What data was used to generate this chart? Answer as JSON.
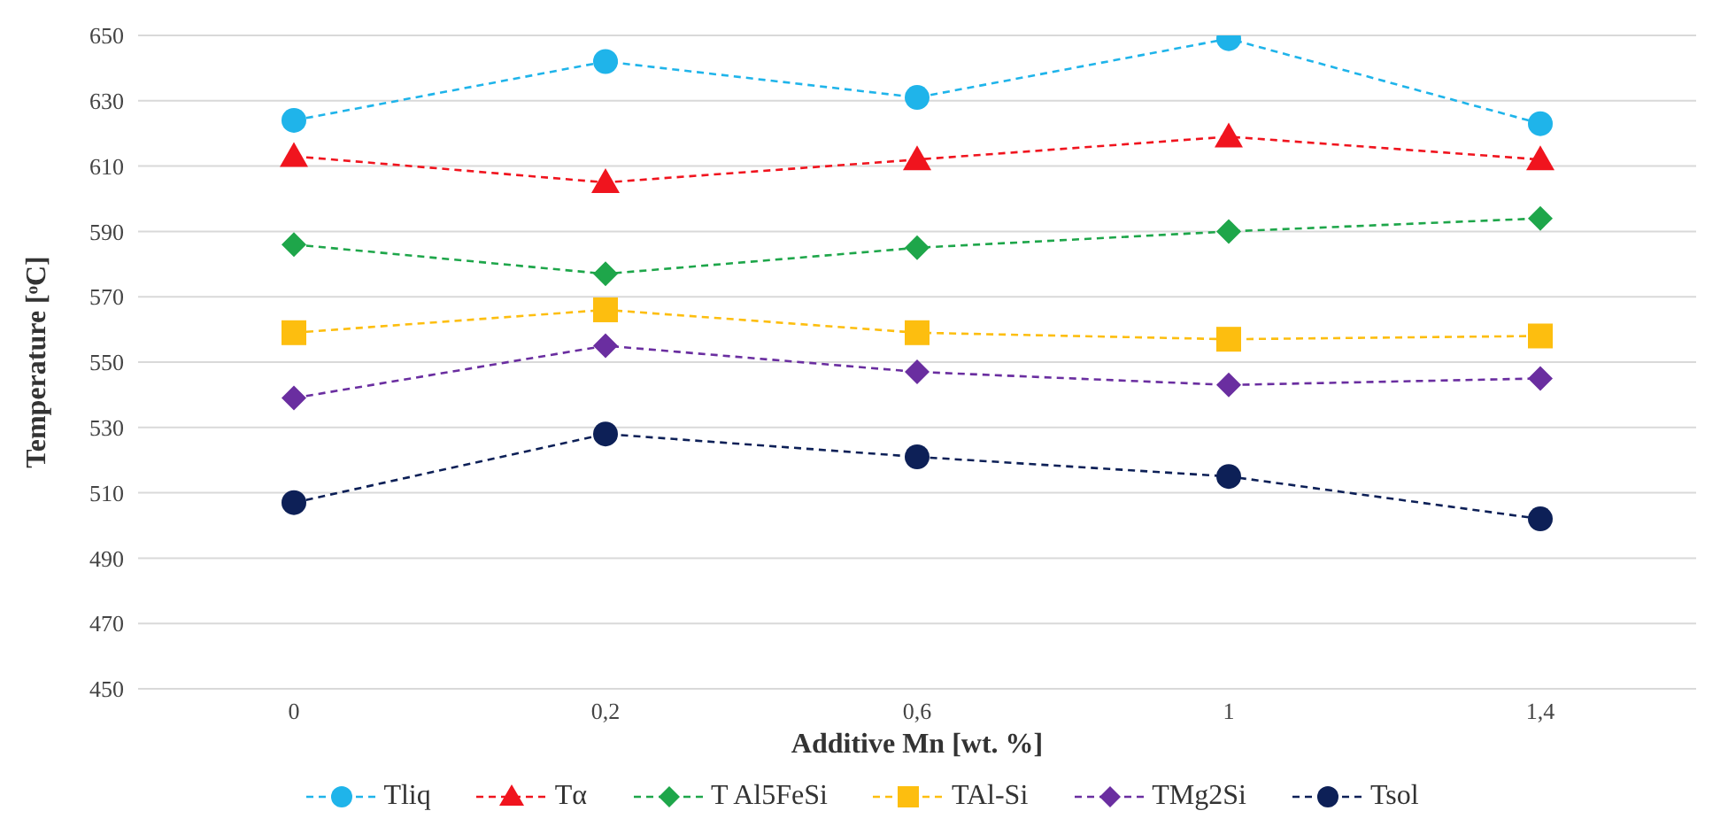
{
  "chart_data": {
    "type": "line",
    "xlabel": "Additive Mn [wt. %]",
    "ylabel": "Temperature [ᵒC]",
    "categories": [
      "0",
      "0,2",
      "0,6",
      "1",
      "1,4"
    ],
    "series": [
      {
        "name": "Tliq",
        "color": "#1fb4ea",
        "marker": "circle",
        "values": [
          624,
          642,
          631,
          649,
          623
        ]
      },
      {
        "name": "Tα",
        "color": "#f0141e",
        "marker": "triangle",
        "values": [
          613,
          605,
          612,
          619,
          612
        ]
      },
      {
        "name": "T Al5FeSi",
        "color": "#1ea64a",
        "marker": "diamond",
        "values": [
          586,
          577,
          585,
          590,
          594
        ]
      },
      {
        "name": "TAl-Si",
        "color": "#fdbe0f",
        "marker": "square",
        "values": [
          559,
          566,
          559,
          557,
          558
        ]
      },
      {
        "name": "TMg2Si",
        "color": "#6a2ea0",
        "marker": "diamond",
        "values": [
          539,
          555,
          547,
          543,
          545
        ]
      },
      {
        "name": "Tsol",
        "color": "#0d2057",
        "marker": "circle",
        "values": [
          507,
          528,
          521,
          515,
          502
        ]
      }
    ],
    "ylim": [
      450,
      650
    ],
    "yticks": [
      450,
      470,
      490,
      510,
      530,
      550,
      570,
      590,
      610,
      630,
      650
    ],
    "grid": "y",
    "legend": "bottom",
    "line_style": "dashed"
  }
}
